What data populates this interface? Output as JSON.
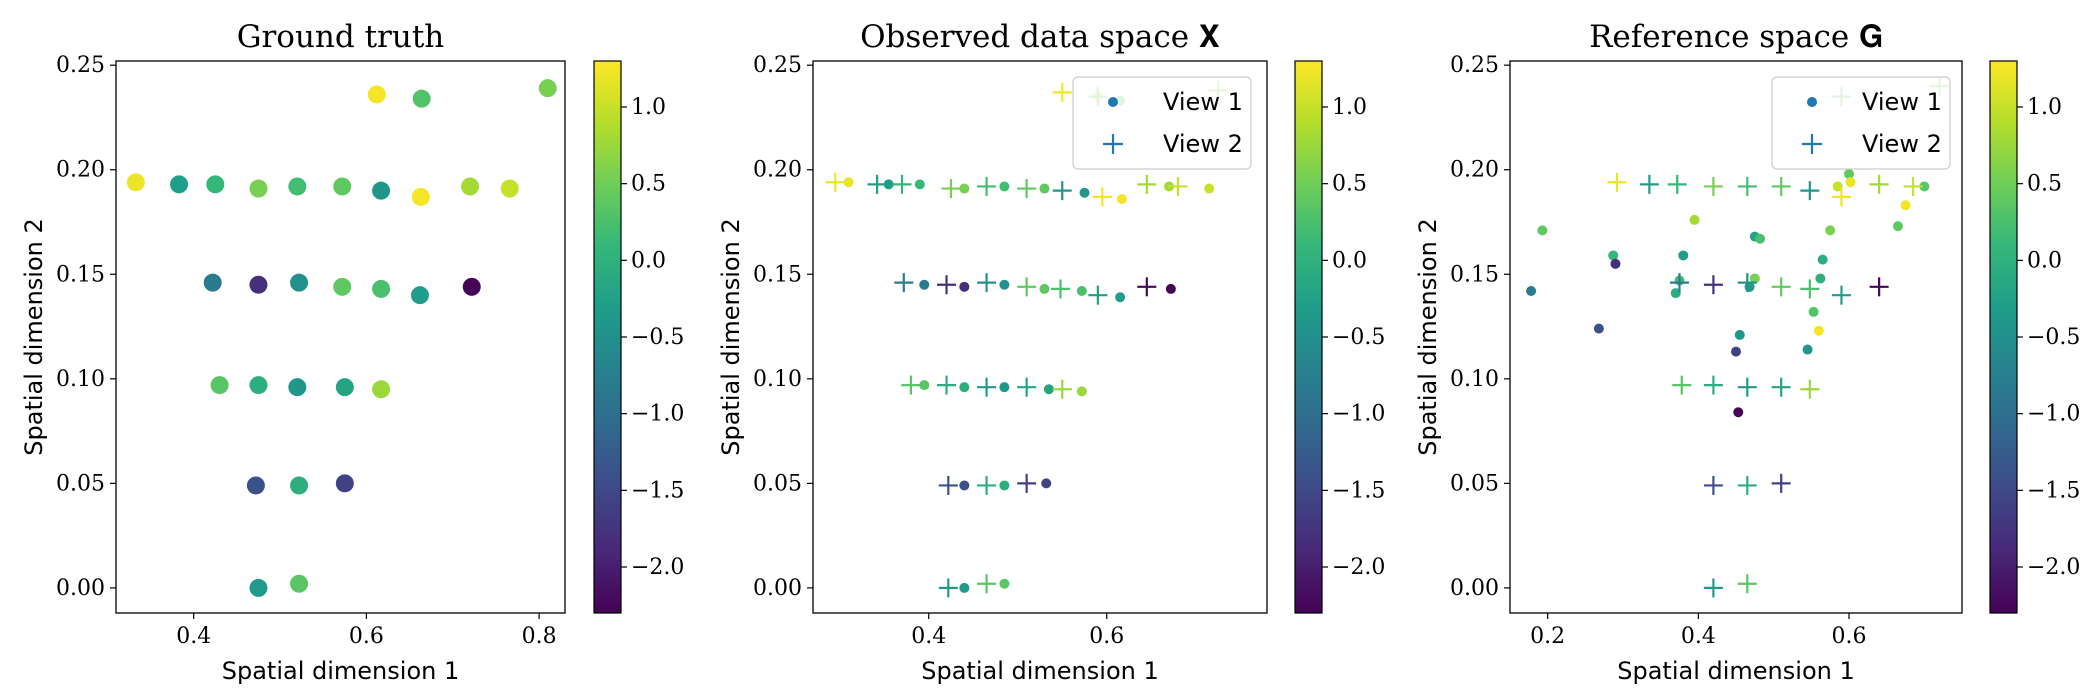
{
  "colors": {
    "colormap": [
      "#440154",
      "#482878",
      "#3e4989",
      "#31688e",
      "#26828e",
      "#1f9e89",
      "#35b779",
      "#6ece58",
      "#b5de2b",
      "#fde725"
    ],
    "legend_view1": "#1f77b4",
    "legend_view2": "#1f77b4"
  },
  "chart_data": [
    {
      "type": "scatter",
      "title": "Ground truth",
      "xlabel": "Spatial dimension 1",
      "ylabel": "Spatial dimension 2",
      "xlim": [
        0.31,
        0.83
      ],
      "ylim": [
        -0.012,
        0.252
      ],
      "xticks": [
        0.4,
        0.6,
        0.8
      ],
      "xtick_labels": [
        "0.4",
        "0.6",
        "0.8"
      ],
      "yticks": [
        0.0,
        0.05,
        0.1,
        0.15,
        0.2,
        0.25
      ],
      "ytick_labels": [
        "0.00",
        "0.05",
        "0.10",
        "0.15",
        "0.20",
        "0.25"
      ],
      "colorbar": {
        "min": -2.3,
        "max": 1.3,
        "ticks": [
          1.0,
          0.5,
          0.0,
          -0.5,
          -1.0,
          -1.5,
          -2.0
        ],
        "tick_labels": [
          "1.0",
          "0.5",
          "0.0",
          "−0.5",
          "−1.0",
          "−1.5",
          "−2.0"
        ]
      },
      "series": [
        {
          "marker": "circle",
          "points": [
            {
              "x": 0.612,
              "y": 0.236,
              "c": 1.25
            },
            {
              "x": 0.664,
              "y": 0.234,
              "c": 0.3
            },
            {
              "x": 0.81,
              "y": 0.239,
              "c": 0.55
            },
            {
              "x": 0.333,
              "y": 0.194,
              "c": 1.2
            },
            {
              "x": 0.383,
              "y": 0.193,
              "c": -0.3
            },
            {
              "x": 0.425,
              "y": 0.193,
              "c": 0.1
            },
            {
              "x": 0.475,
              "y": 0.191,
              "c": 0.55
            },
            {
              "x": 0.52,
              "y": 0.192,
              "c": 0.2
            },
            {
              "x": 0.572,
              "y": 0.192,
              "c": 0.4
            },
            {
              "x": 0.617,
              "y": 0.19,
              "c": -0.4
            },
            {
              "x": 0.663,
              "y": 0.187,
              "c": 1.25
            },
            {
              "x": 0.72,
              "y": 0.192,
              "c": 0.8
            },
            {
              "x": 0.766,
              "y": 0.191,
              "c": 1.0
            },
            {
              "x": 0.422,
              "y": 0.146,
              "c": -0.8
            },
            {
              "x": 0.475,
              "y": 0.145,
              "c": -1.8
            },
            {
              "x": 0.522,
              "y": 0.146,
              "c": -0.5
            },
            {
              "x": 0.572,
              "y": 0.144,
              "c": 0.4
            },
            {
              "x": 0.617,
              "y": 0.143,
              "c": 0.25
            },
            {
              "x": 0.662,
              "y": 0.14,
              "c": -0.3
            },
            {
              "x": 0.722,
              "y": 0.144,
              "c": -2.25
            },
            {
              "x": 0.43,
              "y": 0.097,
              "c": 0.35
            },
            {
              "x": 0.475,
              "y": 0.097,
              "c": -0.05
            },
            {
              "x": 0.52,
              "y": 0.096,
              "c": -0.4
            },
            {
              "x": 0.575,
              "y": 0.096,
              "c": -0.2
            },
            {
              "x": 0.617,
              "y": 0.095,
              "c": 0.75
            },
            {
              "x": 0.472,
              "y": 0.049,
              "c": -1.4
            },
            {
              "x": 0.522,
              "y": 0.049,
              "c": -0.05
            },
            {
              "x": 0.575,
              "y": 0.05,
              "c": -1.6
            },
            {
              "x": 0.475,
              "y": 0.0,
              "c": -0.35
            },
            {
              "x": 0.522,
              "y": 0.002,
              "c": 0.35
            }
          ]
        }
      ]
    },
    {
      "type": "scatter",
      "title": "Observed data space 𝐗",
      "xlabel": "Spatial dimension 1",
      "ylabel": "Spatial dimension 2",
      "xlim": [
        0.27,
        0.78
      ],
      "ylim": [
        -0.012,
        0.252
      ],
      "xticks": [
        0.4,
        0.6
      ],
      "xtick_labels": [
        "0.4",
        "0.6"
      ],
      "yticks": [
        0.0,
        0.05,
        0.1,
        0.15,
        0.2,
        0.25
      ],
      "ytick_labels": [
        "0.00",
        "0.05",
        "0.10",
        "0.15",
        "0.20",
        "0.25"
      ],
      "colorbar": {
        "min": -2.3,
        "max": 1.3,
        "ticks": [
          1.0,
          0.5,
          0.0,
          -0.5,
          -1.0,
          -1.5,
          -2.0
        ],
        "tick_labels": [
          "1.0",
          "0.5",
          "0.0",
          "−0.5",
          "−1.0",
          "−1.5",
          "−2.0"
        ]
      },
      "legend": {
        "position": "top-right",
        "entries": [
          "View 1",
          "View 2"
        ]
      },
      "series": [
        {
          "name": "View 1",
          "marker": "circle",
          "points": [
            {
              "x": 0.31,
              "y": 0.194,
              "c": 1.2
            },
            {
              "x": 0.355,
              "y": 0.193,
              "c": -0.3
            },
            {
              "x": 0.39,
              "y": 0.193,
              "c": 0.1
            },
            {
              "x": 0.44,
              "y": 0.191,
              "c": 0.55
            },
            {
              "x": 0.485,
              "y": 0.192,
              "c": 0.2
            },
            {
              "x": 0.53,
              "y": 0.191,
              "c": 0.4
            },
            {
              "x": 0.575,
              "y": 0.189,
              "c": -0.4
            },
            {
              "x": 0.617,
              "y": 0.186,
              "c": 1.25
            },
            {
              "x": 0.67,
              "y": 0.192,
              "c": 0.8
            },
            {
              "x": 0.715,
              "y": 0.191,
              "c": 1.0
            },
            {
              "x": 0.59,
              "y": 0.235,
              "c": 1.25
            },
            {
              "x": 0.615,
              "y": 0.233,
              "c": 0.3
            },
            {
              "x": 0.395,
              "y": 0.145,
              "c": -0.8
            },
            {
              "x": 0.44,
              "y": 0.144,
              "c": -1.8
            },
            {
              "x": 0.485,
              "y": 0.145,
              "c": -0.5
            },
            {
              "x": 0.53,
              "y": 0.143,
              "c": 0.4
            },
            {
              "x": 0.572,
              "y": 0.142,
              "c": 0.25
            },
            {
              "x": 0.615,
              "y": 0.139,
              "c": -0.3
            },
            {
              "x": 0.672,
              "y": 0.143,
              "c": -2.25
            },
            {
              "x": 0.395,
              "y": 0.097,
              "c": 0.35
            },
            {
              "x": 0.44,
              "y": 0.096,
              "c": -0.05
            },
            {
              "x": 0.485,
              "y": 0.096,
              "c": -0.4
            },
            {
              "x": 0.535,
              "y": 0.095,
              "c": -0.2
            },
            {
              "x": 0.572,
              "y": 0.094,
              "c": 0.75
            },
            {
              "x": 0.44,
              "y": 0.049,
              "c": -1.4
            },
            {
              "x": 0.485,
              "y": 0.049,
              "c": -0.05
            },
            {
              "x": 0.532,
              "y": 0.05,
              "c": -1.6
            },
            {
              "x": 0.44,
              "y": 0.0,
              "c": -0.35
            },
            {
              "x": 0.485,
              "y": 0.002,
              "c": 0.35
            }
          ]
        },
        {
          "name": "View 2",
          "marker": "plus",
          "points": [
            {
              "x": 0.295,
              "y": 0.194,
              "c": 1.2
            },
            {
              "x": 0.342,
              "y": 0.193,
              "c": -0.3
            },
            {
              "x": 0.37,
              "y": 0.193,
              "c": 0.1
            },
            {
              "x": 0.425,
              "y": 0.191,
              "c": 0.55
            },
            {
              "x": 0.465,
              "y": 0.192,
              "c": 0.2
            },
            {
              "x": 0.51,
              "y": 0.191,
              "c": 0.4
            },
            {
              "x": 0.55,
              "y": 0.19,
              "c": -0.4
            },
            {
              "x": 0.595,
              "y": 0.187,
              "c": 1.25
            },
            {
              "x": 0.645,
              "y": 0.193,
              "c": 0.8
            },
            {
              "x": 0.68,
              "y": 0.192,
              "c": 1.0
            },
            {
              "x": 0.55,
              "y": 0.237,
              "c": 1.25
            },
            {
              "x": 0.59,
              "y": 0.235,
              "c": 0.3
            },
            {
              "x": 0.725,
              "y": 0.238,
              "c": 0.55
            },
            {
              "x": 0.372,
              "y": 0.146,
              "c": -0.8
            },
            {
              "x": 0.42,
              "y": 0.145,
              "c": -1.8
            },
            {
              "x": 0.465,
              "y": 0.146,
              "c": -0.5
            },
            {
              "x": 0.51,
              "y": 0.144,
              "c": 0.4
            },
            {
              "x": 0.548,
              "y": 0.143,
              "c": 0.25
            },
            {
              "x": 0.59,
              "y": 0.14,
              "c": -0.3
            },
            {
              "x": 0.645,
              "y": 0.144,
              "c": -2.25
            },
            {
              "x": 0.38,
              "y": 0.097,
              "c": 0.35
            },
            {
              "x": 0.42,
              "y": 0.097,
              "c": -0.05
            },
            {
              "x": 0.465,
              "y": 0.096,
              "c": -0.4
            },
            {
              "x": 0.51,
              "y": 0.096,
              "c": -0.2
            },
            {
              "x": 0.55,
              "y": 0.095,
              "c": 0.75
            },
            {
              "x": 0.422,
              "y": 0.049,
              "c": -1.4
            },
            {
              "x": 0.465,
              "y": 0.049,
              "c": -0.05
            },
            {
              "x": 0.51,
              "y": 0.05,
              "c": -1.6
            },
            {
              "x": 0.422,
              "y": 0.0,
              "c": -0.35
            },
            {
              "x": 0.465,
              "y": 0.002,
              "c": 0.35
            }
          ]
        }
      ]
    },
    {
      "type": "scatter",
      "title": "Reference space 𝐆",
      "xlabel": "Spatial dimension 1",
      "ylabel": "Spatial dimension 2",
      "xlim": [
        0.15,
        0.75
      ],
      "ylim": [
        -0.012,
        0.252
      ],
      "xticks": [
        0.2,
        0.4,
        0.6
      ],
      "xtick_labels": [
        "0.2",
        "0.4",
        "0.6"
      ],
      "yticks": [
        0.0,
        0.05,
        0.1,
        0.15,
        0.2,
        0.25
      ],
      "ytick_labels": [
        "0.00",
        "0.05",
        "0.10",
        "0.15",
        "0.20",
        "0.25"
      ],
      "colorbar": {
        "min": -2.3,
        "max": 1.3,
        "ticks": [
          1.0,
          0.5,
          0.0,
          -0.5,
          -1.0,
          -1.5,
          -2.0
        ],
        "tick_labels": [
          "1.0",
          "0.5",
          "0.0",
          "−0.5",
          "−1.0",
          "−1.5",
          "−2.0"
        ]
      },
      "legend": {
        "position": "top-right",
        "entries": [
          "View 1",
          "View 2"
        ]
      },
      "series": [
        {
          "name": "View 1",
          "marker": "circle",
          "points": [
            {
              "x": 0.178,
              "y": 0.142,
              "c": -0.8
            },
            {
              "x": 0.193,
              "y": 0.171,
              "c": 0.4
            },
            {
              "x": 0.268,
              "y": 0.124,
              "c": -1.4
            },
            {
              "x": 0.287,
              "y": 0.159,
              "c": 0.1
            },
            {
              "x": 0.29,
              "y": 0.155,
              "c": -1.8
            },
            {
              "x": 0.37,
              "y": 0.141,
              "c": -0.05
            },
            {
              "x": 0.375,
              "y": 0.147,
              "c": 0.2
            },
            {
              "x": 0.38,
              "y": 0.159,
              "c": -0.3
            },
            {
              "x": 0.395,
              "y": 0.176,
              "c": 0.8
            },
            {
              "x": 0.45,
              "y": 0.113,
              "c": -1.6
            },
            {
              "x": 0.455,
              "y": 0.121,
              "c": -0.4
            },
            {
              "x": 0.453,
              "y": 0.084,
              "c": -2.25
            },
            {
              "x": 0.468,
              "y": 0.144,
              "c": -0.35
            },
            {
              "x": 0.475,
              "y": 0.168,
              "c": -0.2
            },
            {
              "x": 0.482,
              "y": 0.167,
              "c": 0.25
            },
            {
              "x": 0.475,
              "y": 0.148,
              "c": 0.55
            },
            {
              "x": 0.545,
              "y": 0.114,
              "c": -0.4
            },
            {
              "x": 0.553,
              "y": 0.132,
              "c": 0.3
            },
            {
              "x": 0.56,
              "y": 0.123,
              "c": 1.25
            },
            {
              "x": 0.562,
              "y": 0.148,
              "c": 0.0
            },
            {
              "x": 0.565,
              "y": 0.157,
              "c": -0.05
            },
            {
              "x": 0.575,
              "y": 0.171,
              "c": 0.55
            },
            {
              "x": 0.585,
              "y": 0.192,
              "c": 1.0
            },
            {
              "x": 0.6,
              "y": 0.198,
              "c": 0.4
            },
            {
              "x": 0.602,
              "y": 0.194,
              "c": 1.2
            },
            {
              "x": 0.665,
              "y": 0.173,
              "c": 0.4
            },
            {
              "x": 0.675,
              "y": 0.183,
              "c": 1.25
            },
            {
              "x": 0.7,
              "y": 0.192,
              "c": 0.35
            }
          ]
        },
        {
          "name": "View 2",
          "marker": "plus",
          "points": [
            {
              "x": 0.292,
              "y": 0.194,
              "c": 1.2
            },
            {
              "x": 0.335,
              "y": 0.193,
              "c": -0.3
            },
            {
              "x": 0.372,
              "y": 0.193,
              "c": 0.1
            },
            {
              "x": 0.42,
              "y": 0.192,
              "c": 0.55
            },
            {
              "x": 0.465,
              "y": 0.192,
              "c": 0.2
            },
            {
              "x": 0.51,
              "y": 0.192,
              "c": 0.4
            },
            {
              "x": 0.548,
              "y": 0.19,
              "c": -0.4
            },
            {
              "x": 0.59,
              "y": 0.187,
              "c": 1.25
            },
            {
              "x": 0.64,
              "y": 0.193,
              "c": 0.8
            },
            {
              "x": 0.685,
              "y": 0.192,
              "c": 1.0
            },
            {
              "x": 0.59,
              "y": 0.235,
              "c": 0.3
            },
            {
              "x": 0.72,
              "y": 0.24,
              "c": 0.55
            },
            {
              "x": 0.375,
              "y": 0.146,
              "c": -0.8
            },
            {
              "x": 0.42,
              "y": 0.145,
              "c": -1.8
            },
            {
              "x": 0.465,
              "y": 0.146,
              "c": -0.5
            },
            {
              "x": 0.51,
              "y": 0.144,
              "c": 0.4
            },
            {
              "x": 0.548,
              "y": 0.143,
              "c": 0.25
            },
            {
              "x": 0.59,
              "y": 0.14,
              "c": -0.3
            },
            {
              "x": 0.64,
              "y": 0.144,
              "c": -2.25
            },
            {
              "x": 0.378,
              "y": 0.097,
              "c": 0.35
            },
            {
              "x": 0.42,
              "y": 0.097,
              "c": -0.05
            },
            {
              "x": 0.465,
              "y": 0.096,
              "c": -0.4
            },
            {
              "x": 0.51,
              "y": 0.096,
              "c": -0.2
            },
            {
              "x": 0.548,
              "y": 0.095,
              "c": 0.75
            },
            {
              "x": 0.42,
              "y": 0.049,
              "c": -1.4
            },
            {
              "x": 0.465,
              "y": 0.049,
              "c": -0.05
            },
            {
              "x": 0.51,
              "y": 0.05,
              "c": -1.6
            },
            {
              "x": 0.42,
              "y": 0.0,
              "c": -0.35
            },
            {
              "x": 0.465,
              "y": 0.002,
              "c": 0.35
            }
          ]
        }
      ]
    }
  ]
}
